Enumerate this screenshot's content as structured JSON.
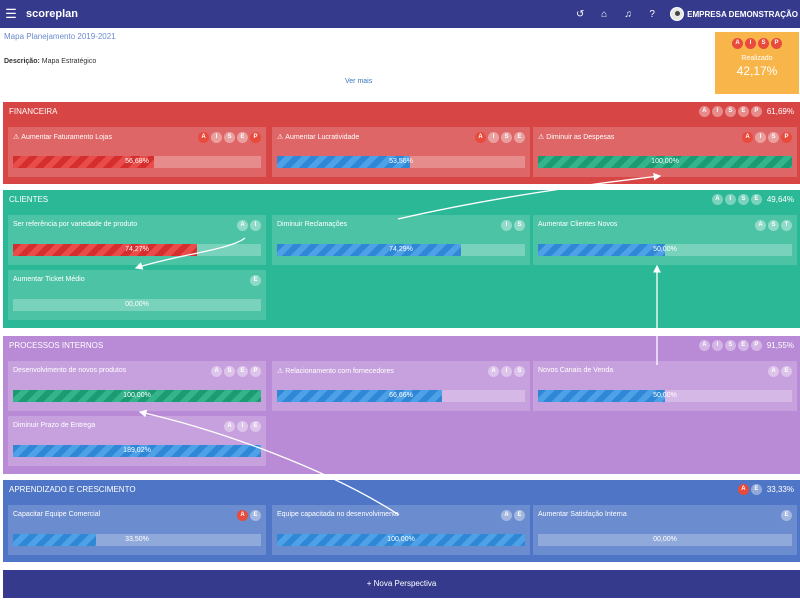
{
  "app": {
    "brand": "scoreplan",
    "company": "EMPRESA DEMONSTRAÇÃO"
  },
  "map": {
    "title": "Mapa Planejamento 2019-2021",
    "description_label": "Descrição:",
    "description_value": "Mapa Estratégico",
    "see_more": "Ver mais"
  },
  "result": {
    "badges": [
      "A",
      "I",
      "S",
      "P"
    ],
    "label": "Realizado",
    "value": "42,17%"
  },
  "perspectives": [
    {
      "title": "FINANCEIRA",
      "badges": [
        "A",
        "I",
        "S",
        "E",
        "P"
      ],
      "pct": "61,69%",
      "objectives": [
        {
          "title": "Aumentar Faturamento Lojas",
          "warn": true,
          "badges": [
            "A",
            "I",
            "S",
            "E",
            "P"
          ],
          "value": "56,68%",
          "fraction": 0.5668,
          "color": "red"
        },
        {
          "title": "Aumentar Lucratividade",
          "warn": true,
          "badges": [
            "A",
            "I",
            "S",
            "E"
          ],
          "value": "53,56%",
          "fraction": 0.5356,
          "color": "blue"
        },
        {
          "title": "Diminuir as Despesas",
          "warn": true,
          "badges": [
            "A",
            "I",
            "S",
            "P"
          ],
          "value": "100,00%",
          "fraction": 1.0,
          "color": "green"
        }
      ]
    },
    {
      "title": "CLIENTES",
      "badges": [
        "A",
        "I",
        "S",
        "E"
      ],
      "pct": "49,64%",
      "objectives": [
        {
          "title": "Ser referência por variedade de produto",
          "warn": false,
          "badges": [
            "A",
            "I"
          ],
          "value": "74,27%",
          "fraction": 0.7427,
          "color": "red"
        },
        {
          "title": "Diminuir Reclamações",
          "warn": false,
          "badges": [
            "I",
            "S"
          ],
          "value": "74,29%",
          "fraction": 0.7429,
          "color": "blue"
        },
        {
          "title": "Aumentar Clientes Novos",
          "warn": false,
          "badges": [
            "A",
            "S",
            "T"
          ],
          "value": "50,00%",
          "fraction": 0.5,
          "color": "blue"
        },
        {
          "title": "Aumentar Ticket Médio",
          "warn": false,
          "badges": [
            "E"
          ],
          "value": "00,00%",
          "fraction": 0.0,
          "color": "blue"
        }
      ]
    },
    {
      "title": "PROCESSOS INTERNOS",
      "badges": [
        "A",
        "I",
        "S",
        "E",
        "P"
      ],
      "pct": "91,55%",
      "objectives": [
        {
          "title": "Desenvolvimento de novos produtos",
          "warn": false,
          "badges": [
            "A",
            "S",
            "E",
            "P"
          ],
          "value": "100,00%",
          "fraction": 1.0,
          "color": "green"
        },
        {
          "title": "Relacionamento com fornecedores",
          "warn": true,
          "badges": [
            "A",
            "I",
            "S"
          ],
          "value": "66,66%",
          "fraction": 0.6666,
          "color": "blue"
        },
        {
          "title": "Novos Canais de Venda",
          "warn": false,
          "badges": [
            "A",
            "E"
          ],
          "value": "50,00%",
          "fraction": 0.5,
          "color": "blue"
        },
        {
          "title": "Diminuir Prazo de Entrega",
          "warn": false,
          "badges": [
            "A",
            "I",
            "E"
          ],
          "value": "189,02%",
          "fraction": 1.0,
          "color": "blue"
        }
      ]
    },
    {
      "title": "APRENDIZADO E CRESCIMENTO",
      "badges": [
        "A",
        "E"
      ],
      "pct": "33,33%",
      "objectives": [
        {
          "title": "Capacitar Equipe Comercial",
          "warn": false,
          "badges": [
            "A",
            "E"
          ],
          "value": "33,50%",
          "fraction": 0.335,
          "color": "blue"
        },
        {
          "title": "Equipe capacitada no desenvolvimento",
          "warn": false,
          "badges": [
            "A",
            "E"
          ],
          "value": "100,00%",
          "fraction": 1.0,
          "color": "blue"
        },
        {
          "title": "Aumentar Satisfação Interna",
          "warn": false,
          "badges": [
            "E"
          ],
          "value": "00,00%",
          "fraction": 0.0,
          "color": "blue"
        }
      ]
    }
  ],
  "new_perspective": "+ Nova Perspectiva",
  "colors": {
    "topbar": "#353a8c",
    "financeira": "#d84545",
    "clientes": "#2bb896",
    "processos": "#b98ad6",
    "aprendizado": "#4f76c6",
    "result": "#f8b64a"
  },
  "icons": [
    "menu-icon",
    "history-icon",
    "home-icon",
    "bell-icon",
    "help-icon",
    "avatar",
    "warning-icon",
    "plus-icon"
  ]
}
